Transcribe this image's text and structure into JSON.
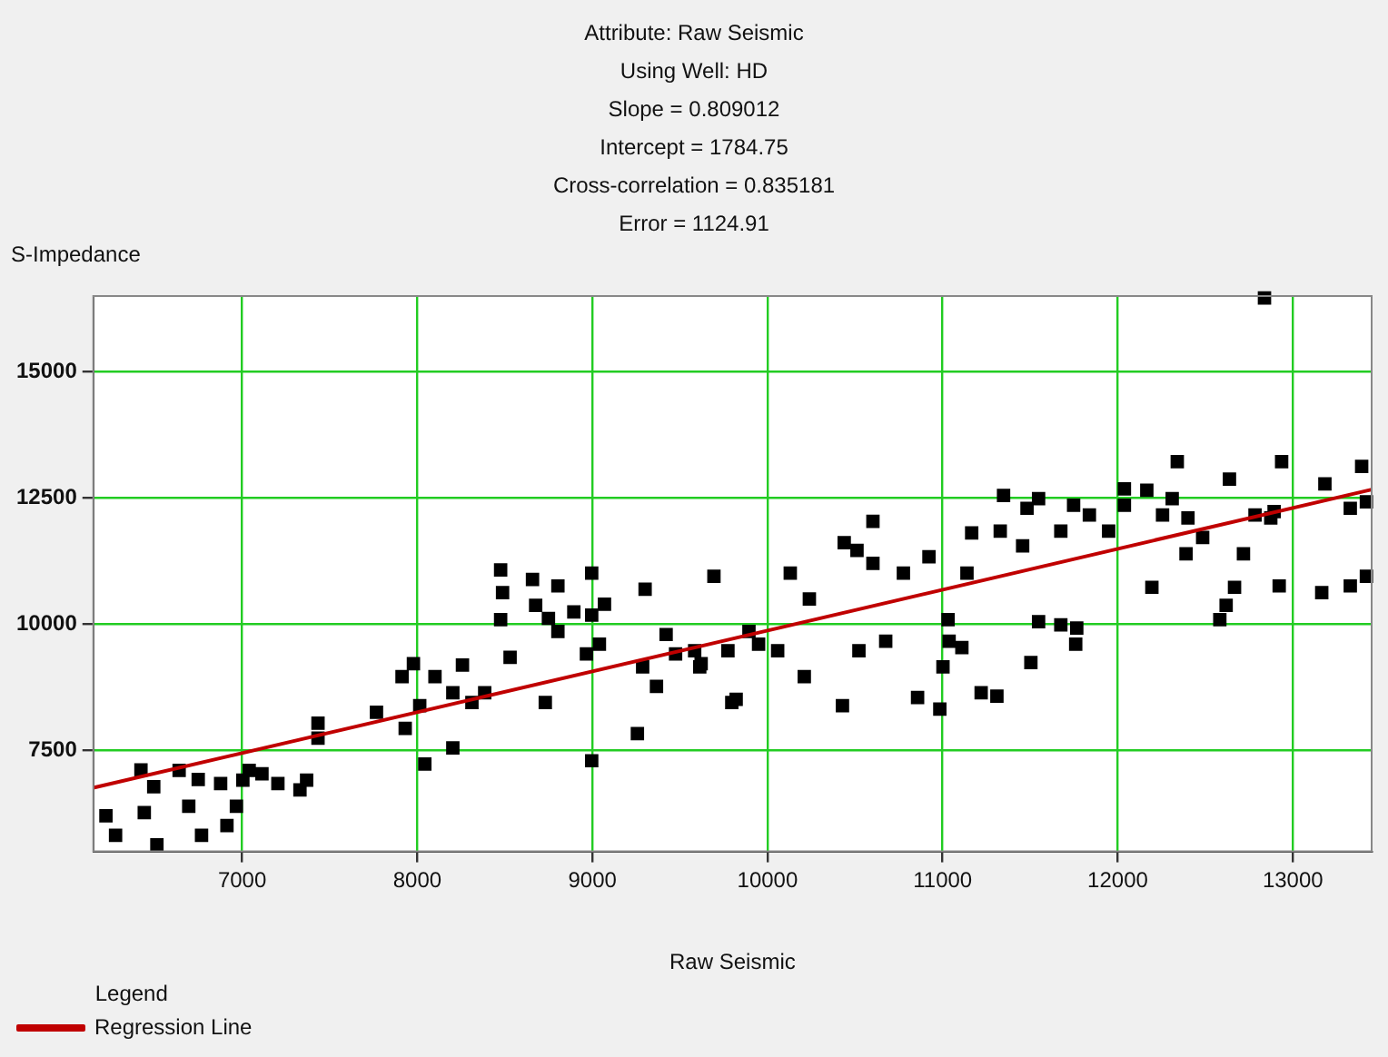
{
  "chart_data": {
    "type": "scatter",
    "title": "Attribute: Raw Seismic",
    "subtitle": "Using Well: HD",
    "annotations": [
      "Slope = 0.809012",
      "Intercept = 1784.75",
      "Cross-correlation = 0.835181",
      "Error = 1124.91"
    ],
    "xlabel": "Raw Seismic",
    "ylabel": "S-Impedance",
    "legend_title": "Legend",
    "legend": "bottom left",
    "grid": true,
    "xlim": [
      6150,
      13450
    ],
    "xticks": [
      7000,
      8000,
      9000,
      10000,
      11000,
      12000,
      13000
    ],
    "ylim": [
      5500,
      16500
    ],
    "yticks": [
      7500,
      10000,
      12500,
      15000
    ],
    "series": [
      {
        "color": "#000000",
        "marker": "square",
        "x": [
          6222,
          6277,
          6441,
          6422,
          6495,
          6513,
          6640,
          6695,
          6749,
          6768,
          6877,
          6913,
          6967,
          7004,
          7040,
          7113,
          7204,
          7330,
          7368,
          7433,
          7433,
          7767,
          7913,
          7931,
          7978,
          8014,
          8043,
          8101,
          8203,
          8258,
          8203,
          8312,
          8385,
          8476,
          8487,
          8476,
          8530,
          8658,
          8676,
          8731,
          8749,
          8803,
          8803,
          8894,
          8996,
          8996,
          9040,
          8966,
          9069,
          8996,
          9257,
          9301,
          9287,
          9366,
          9421,
          9475,
          9584,
          9613,
          9694,
          9774,
          9796,
          9621,
          9821,
          9894,
          9949,
          10058,
          10130,
          10210,
          10239,
          10428,
          10438,
          10511,
          10522,
          10602,
          10602,
          10675,
          10776,
          10857,
          10922,
          10984,
          11002,
          11031,
          11037,
          11110,
          11139,
          11166,
          11220,
          11310,
          11329,
          11348,
          11457,
          11482,
          11504,
          11548,
          11548,
          11675,
          11675,
          11748,
          11760,
          11766,
          11838,
          11948,
          12038,
          12038,
          12166,
          12195,
          12256,
          12311,
          12340,
          12401,
          12390,
          12485,
          12583,
          12619,
          12667,
          12638,
          12718,
          12784,
          12838,
          12874,
          12893,
          12922,
          12936,
          13165,
          13183,
          13328,
          13328,
          13393,
          13420,
          13420
        ],
        "values": [
          6204,
          5820,
          6270,
          7115,
          6781,
          5630,
          7104,
          6396,
          6923,
          5820,
          6846,
          6012,
          6396,
          6911,
          7104,
          7038,
          6846,
          6718,
          6911,
          8038,
          7744,
          8257,
          8962,
          7935,
          9219,
          8385,
          7231,
          8962,
          7550,
          9192,
          8642,
          8450,
          8642,
          11077,
          10627,
          10090,
          9346,
          10885,
          10373,
          8450,
          10115,
          10758,
          9858,
          10242,
          11012,
          10179,
          9604,
          9411,
          10397,
          7296,
          7834,
          10692,
          9154,
          8769,
          9796,
          9411,
          9473,
          9154,
          10950,
          9473,
          8450,
          9219,
          8512,
          9858,
          9604,
          9473,
          11012,
          8962,
          10500,
          8385,
          11615,
          11462,
          9473,
          11204,
          12038,
          9665,
          11012,
          8550,
          11335,
          8320,
          9154,
          10090,
          9665,
          9538,
          11012,
          11808,
          8642,
          8577,
          11846,
          12550,
          11550,
          12296,
          9242,
          12488,
          10050,
          9988,
          11846,
          12358,
          9604,
          9923,
          12165,
          11846,
          12681,
          12358,
          12654,
          10731,
          12165,
          12488,
          13219,
          12104,
          11396,
          11719,
          10090,
          10373,
          10731,
          12873,
          11396,
          12165,
          16462,
          12104,
          12231,
          10758,
          13219,
          10627,
          12781,
          10758,
          12296,
          13127,
          10950,
          12423
        ]
      },
      {
        "type": "line",
        "name": "Regression Line",
        "color": "#c00000",
        "marker": "none",
        "line_style": "solid",
        "x": [
          6150,
          13450
        ],
        "values": [
          6760,
          12666
        ]
      }
    ]
  }
}
